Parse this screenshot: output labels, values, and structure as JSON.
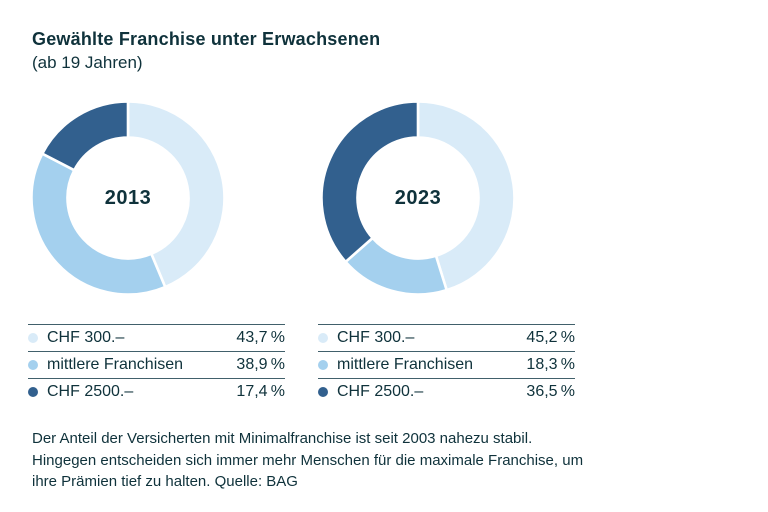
{
  "header": {
    "title": "Gewählte Franchise unter Erwachsenen",
    "subtitle": "(ab 19 Jahren)"
  },
  "charts": [
    {
      "year": "2013",
      "rows": [
        {
          "label": "CHF 300.–",
          "value": "43,7 %"
        },
        {
          "label": "mittlere Franchisen",
          "value": "38,9 %"
        },
        {
          "label": "CHF 2500.–",
          "value": "17,4 %"
        }
      ]
    },
    {
      "year": "2023",
      "rows": [
        {
          "label": "CHF 300.–",
          "value": "45,2 %"
        },
        {
          "label": "mittlere Franchisen",
          "value": "18,3 %"
        },
        {
          "label": "CHF 2500.–",
          "value": "36,5 %"
        }
      ]
    }
  ],
  "chart_data": [
    {
      "type": "pie",
      "subtype": "donut",
      "title": "2013",
      "labels": [
        "CHF 300.–",
        "mittlere Franchisen",
        "CHF 2500.–"
      ],
      "values": [
        43.7,
        38.9,
        17.4
      ],
      "unit": "%",
      "colors": [
        "#d9ebf8",
        "#a4d0ee",
        "#32608e"
      ],
      "start_angle_deg": 0,
      "direction": "clockwise",
      "legend_position": "below"
    },
    {
      "type": "pie",
      "subtype": "donut",
      "title": "2023",
      "labels": [
        "CHF 300.–",
        "mittlere Franchisen",
        "CHF 2500.–"
      ],
      "values": [
        45.2,
        18.3,
        36.5
      ],
      "unit": "%",
      "colors": [
        "#d9ebf8",
        "#a4d0ee",
        "#32608e"
      ],
      "start_angle_deg": 0,
      "direction": "clockwise",
      "legend_position": "below"
    }
  ],
  "footer": {
    "text": "Der Anteil der Versicherten mit Minimalfranchise ist seit 2003 nahezu stabil. Hingegen entscheiden sich immer mehr Menschen für die maximale Franchise, um ihre Prämien tief zu halten. Quelle: BAG"
  },
  "colors": {
    "text": "#0f323b",
    "rule": "#41606b",
    "segment_light": "#d9ebf8",
    "segment_medium": "#a4d0ee",
    "segment_dark": "#32608e"
  }
}
